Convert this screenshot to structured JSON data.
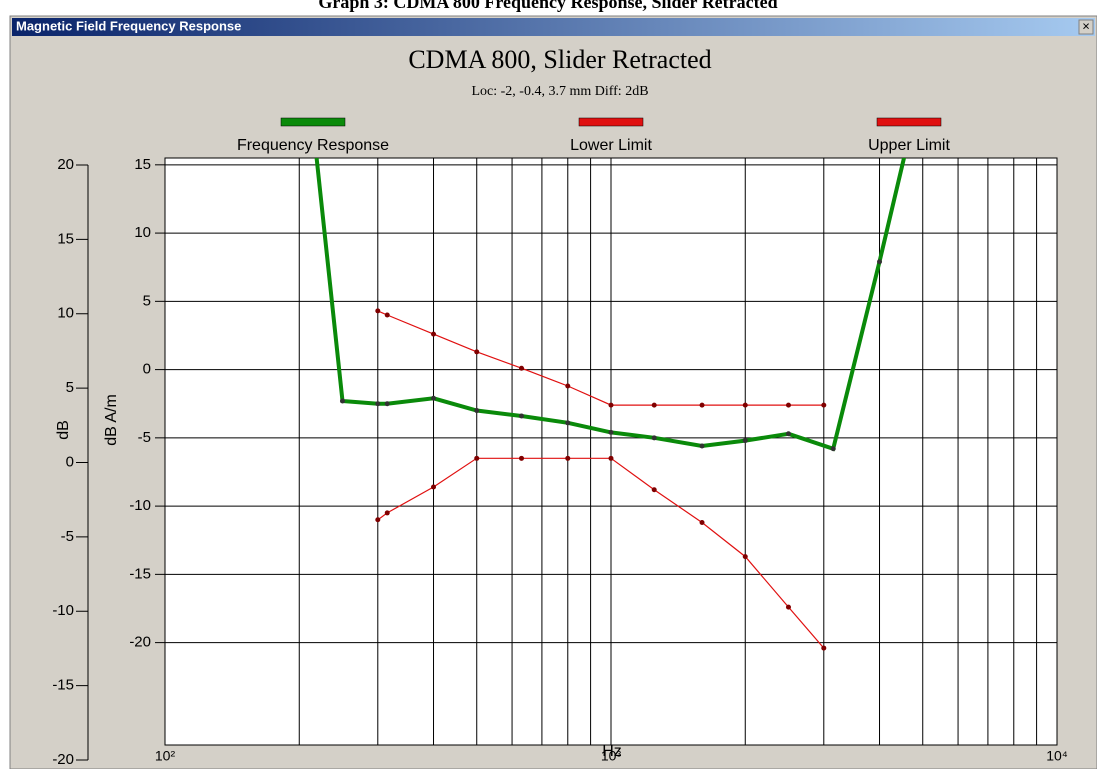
{
  "caption": "Graph 3: CDMA 800 Frequency Response, Slider Retracted",
  "window": {
    "title": "Magnetic Field Frequency Response",
    "close": "×"
  },
  "chart_data": {
    "type": "line",
    "title": "CDMA 800, Slider Retracted",
    "subtitle": "Loc: -2, -0.4, 3.7 mm Diff: 2dB",
    "x_label": "Hz",
    "y_label": "dB A/m",
    "y2_label": "dB",
    "x_log": true,
    "grid": true,
    "legend": "top",
    "xlim": [
      100,
      10000
    ],
    "xticks": [
      {
        "value": 100,
        "label": "10²"
      },
      {
        "value": 1000,
        "label": "10³"
      },
      {
        "value": 10000,
        "label": "10⁴"
      }
    ],
    "xgrid": [
      200,
      300,
      400,
      500,
      600,
      700,
      800,
      900,
      2000,
      3000,
      4000,
      5000,
      6000,
      7000,
      8000,
      9000
    ],
    "ylim": [
      -27.5,
      15.5
    ],
    "yticks": [
      -20,
      -15,
      -10,
      -5,
      0,
      5,
      10,
      15
    ],
    "y2lim": [
      -20,
      20
    ],
    "y2ticks": [
      -20,
      -15,
      -10,
      -5,
      0,
      5,
      10,
      15,
      20
    ],
    "series": [
      {
        "name": "Frequency Response",
        "color": "#0a8a0a",
        "x": [
          200,
          250,
          300,
          315,
          400,
          500,
          630,
          800,
          1000,
          1250,
          1600,
          2000,
          2500,
          3150,
          4000,
          5000
        ],
        "values": [
          27.4,
          -2.3,
          -2.5,
          -2.5,
          -2.1,
          -3.0,
          -3.4,
          -3.9,
          -4.6,
          -5.0,
          -5.6,
          -5.2,
          -4.7,
          -5.8,
          7.9,
          21.3
        ]
      },
      {
        "name": "Lower Limit",
        "color": "#e01010",
        "x": [
          300,
          315,
          400,
          500,
          630,
          800,
          1000,
          1250,
          1600,
          2000,
          2500,
          3000
        ],
        "values": [
          -11.0,
          -10.5,
          -8.6,
          -6.5,
          -6.5,
          -6.5,
          -6.5,
          -8.8,
          -11.2,
          -13.7,
          -17.4,
          -20.4
        ]
      },
      {
        "name": "Upper Limit",
        "color": "#e01010",
        "x": [
          300,
          315,
          400,
          500,
          630,
          800,
          1000,
          1250,
          1600,
          2000,
          2500,
          3000
        ],
        "values": [
          4.3,
          4.0,
          2.6,
          1.3,
          0.1,
          -1.2,
          -2.6,
          -2.6,
          -2.6,
          -2.6,
          -2.6,
          -2.6
        ]
      }
    ]
  }
}
